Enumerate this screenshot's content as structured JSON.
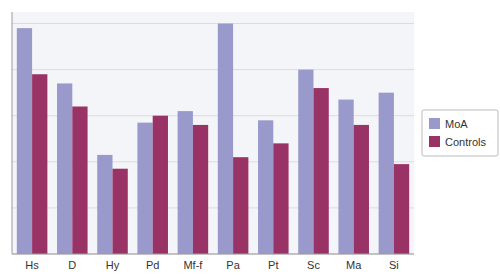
{
  "chart_data": {
    "type": "bar",
    "categories": [
      "Hs",
      "D",
      "Hy",
      "Pd",
      "Mf-f",
      "Pa",
      "Pt",
      "Sc",
      "Ma",
      "Si"
    ],
    "series": [
      {
        "name": "MoA",
        "color": "#9999CC",
        "values": [
          98,
          74,
          43,
          57,
          62,
          100,
          58,
          80,
          67,
          70
        ]
      },
      {
        "name": "Controls",
        "color": "#993366",
        "values": [
          78,
          64,
          37,
          60,
          56,
          42,
          48,
          72,
          56,
          39
        ]
      }
    ],
    "ylim": [
      0,
      105
    ],
    "yticks": [
      0,
      20,
      40,
      60,
      80,
      100
    ],
    "grid": true,
    "legend": "right",
    "tick_labels": "x"
  }
}
